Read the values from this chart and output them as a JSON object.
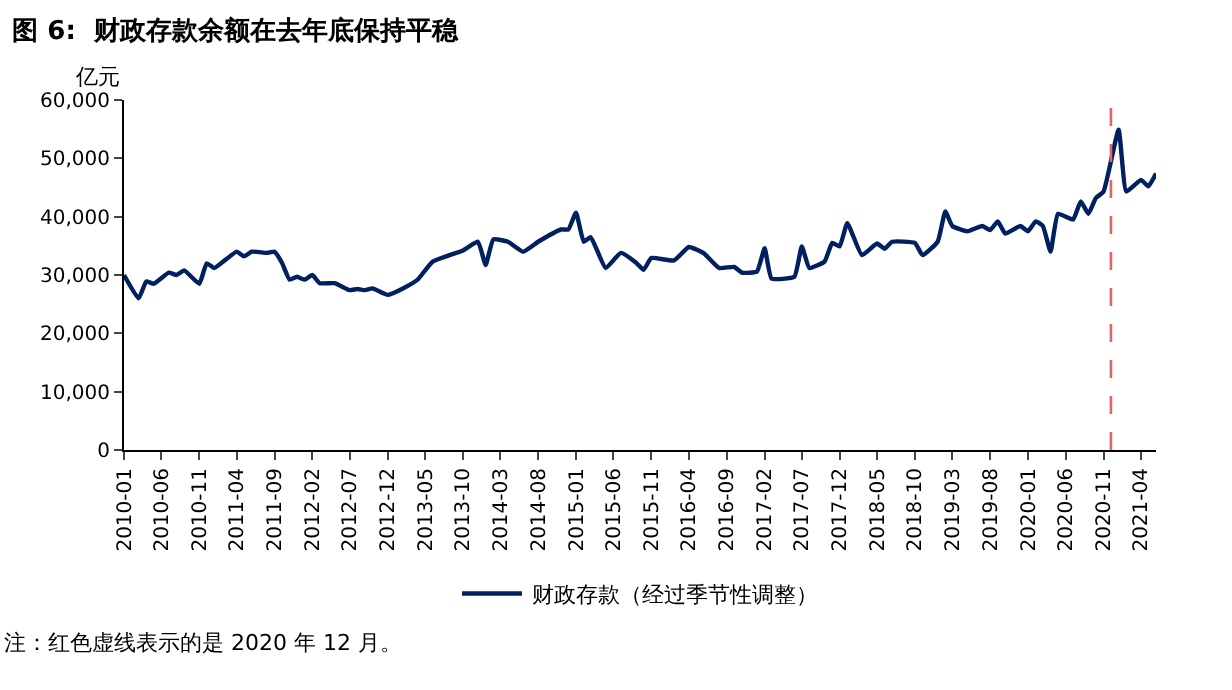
{
  "chart_data": {
    "type": "line",
    "title": "图 6:  财政存款余额在去年底保持平稳",
    "ylabel": "亿元",
    "x": [
      "2010-01",
      "2010-03",
      "2010-04",
      "2010-05",
      "2010-07",
      "2010-08",
      "2010-09",
      "2010-11",
      "2010-12",
      "2011-01",
      "2011-04",
      "2011-05",
      "2011-06",
      "2011-08",
      "2011-09",
      "2011-10",
      "2011-11",
      "2011-12",
      "2012-01",
      "2012-02",
      "2012-03",
      "2012-05",
      "2012-07",
      "2012-08",
      "2012-09",
      "2012-10",
      "2012-12",
      "2013-02",
      "2013-04",
      "2013-06",
      "2013-10",
      "2013-12",
      "2014-01",
      "2014-02",
      "2014-04",
      "2014-06",
      "2014-08",
      "2014-11",
      "2014-12",
      "2015-01",
      "2015-02",
      "2015-03",
      "2015-05",
      "2015-07",
      "2015-09",
      "2015-10",
      "2015-11",
      "2016-02",
      "2016-04",
      "2016-06",
      "2016-08",
      "2016-10",
      "2016-11",
      "2017-01",
      "2017-02",
      "2017-03",
      "2017-06",
      "2017-07",
      "2017-08",
      "2017-10",
      "2017-11",
      "2017-12",
      "2018-01",
      "2018-03",
      "2018-05",
      "2018-06",
      "2018-07",
      "2018-10",
      "2018-11",
      "2019-01",
      "2019-02",
      "2019-03",
      "2019-05",
      "2019-07",
      "2019-08",
      "2019-09",
      "2019-10",
      "2019-12",
      "2020-01",
      "2020-02",
      "2020-03",
      "2020-04",
      "2020-05",
      "2020-07",
      "2020-08",
      "2020-09",
      "2020-10",
      "2020-11",
      "2021-01",
      "2021-02",
      "2021-04",
      "2021-05",
      "2021-06"
    ],
    "series": [
      {
        "name": "财政存款（经过季节性调整）",
        "color": "#002060",
        "values": [
          30000,
          26000,
          28900,
          28500,
          30400,
          30000,
          30800,
          28500,
          32000,
          31200,
          34000,
          33200,
          34000,
          33800,
          34000,
          32100,
          29200,
          29700,
          29200,
          30000,
          28600,
          28600,
          27400,
          27600,
          27400,
          27700,
          26600,
          27700,
          29200,
          32300,
          34200,
          35700,
          31700,
          36100,
          35700,
          34000,
          35700,
          37800,
          37800,
          40700,
          35700,
          36500,
          31200,
          33800,
          32100,
          30900,
          32900,
          32500,
          34800,
          33700,
          31200,
          31400,
          30400,
          30600,
          34600,
          29400,
          29700,
          34900,
          31200,
          32300,
          35500,
          34900,
          38900,
          33400,
          35400,
          34500,
          35700,
          35500,
          33400,
          35700,
          40900,
          38400,
          37500,
          38400,
          37700,
          39200,
          37100,
          38400,
          37500,
          39200,
          38400,
          34000,
          40500,
          39500,
          42600,
          40500,
          43200,
          44300,
          54900,
          44300,
          46300,
          45200,
          47400
        ]
      }
    ],
    "xlim": [
      "2010-01",
      "2021-06"
    ],
    "xticks": [
      {
        "value": "2010-01",
        "label": "2010-01"
      },
      {
        "value": "2010-06",
        "label": "2010-06"
      },
      {
        "value": "2010-11",
        "label": "2010-11"
      },
      {
        "value": "2011-04",
        "label": "2011-04"
      },
      {
        "value": "2011-09",
        "label": "2011-09"
      },
      {
        "value": "2012-02",
        "label": "2012-02"
      },
      {
        "value": "2012-07",
        "label": "2012-07"
      },
      {
        "value": "2012-12",
        "label": "2012-12"
      },
      {
        "value": "2013-05",
        "label": "2013-05"
      },
      {
        "value": "2013-10",
        "label": "2013-10"
      },
      {
        "value": "2014-03",
        "label": "2014-03"
      },
      {
        "value": "2014-08",
        "label": "2014-08"
      },
      {
        "value": "2015-01",
        "label": "2015-01"
      },
      {
        "value": "2015-06",
        "label": "2015-06"
      },
      {
        "value": "2015-11",
        "label": "2015-11"
      },
      {
        "value": "2016-04",
        "label": "2016-04"
      },
      {
        "value": "2016-09",
        "label": "2016-09"
      },
      {
        "value": "2017-02",
        "label": "2017-02"
      },
      {
        "value": "2017-07",
        "label": "2017-07"
      },
      {
        "value": "2017-12",
        "label": "2017-12"
      },
      {
        "value": "2018-05",
        "label": "2018-05"
      },
      {
        "value": "2018-10",
        "label": "2018-10"
      },
      {
        "value": "2019-03",
        "label": "2019-03"
      },
      {
        "value": "2019-08",
        "label": "2019-08"
      },
      {
        "value": "2020-01",
        "label": "2020-01"
      },
      {
        "value": "2020-06",
        "label": "2020-06"
      },
      {
        "value": "2020-11",
        "label": "2020-11"
      },
      {
        "value": "2021-04",
        "label": "2021-04"
      }
    ],
    "ylim": [
      0,
      60000
    ],
    "yticks": [
      0,
      {
        "value": 10000,
        "label": "10,000"
      },
      {
        "value": 20000,
        "label": "20,000"
      },
      {
        "value": 30000,
        "label": "30,000"
      },
      {
        "value": 40000,
        "label": "40,000"
      },
      {
        "value": 50000,
        "label": "50,000"
      },
      {
        "value": 60000,
        "label": "60,000"
      }
    ],
    "ref_lines": [
      {
        "axis": "x",
        "value": "2020-12",
        "color": "#e06666",
        "line_style": "dashed"
      }
    ],
    "legend": "bottom",
    "marker": "none",
    "line_style": "solid",
    "annotations": [
      "注：红色虚线表示的是 2020 年 12 月。"
    ]
  }
}
